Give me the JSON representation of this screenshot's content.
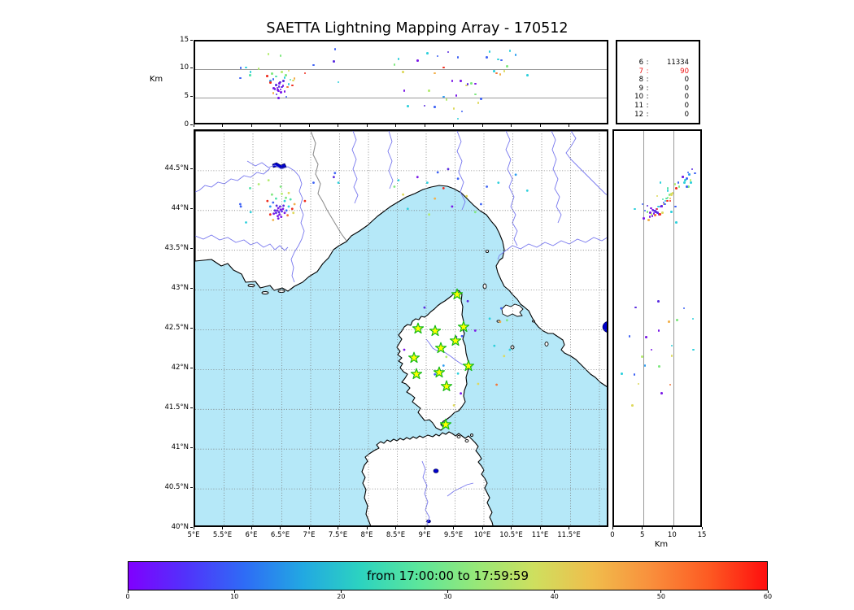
{
  "title": "SAETTA Lightning Mapping Array - 170512",
  "altitude_panel": {
    "axis_label": "Km",
    "tick_labels": [
      "15",
      "10",
      "5",
      "0"
    ],
    "tick_values": [
      15,
      10,
      5,
      0
    ],
    "gridlines": [
      5,
      10
    ],
    "range_km": [
      0,
      15
    ]
  },
  "stats_panel": {
    "rows": [
      {
        "channel": "6",
        "value": "11334",
        "highlight": false
      },
      {
        "channel": "7",
        "value": "90",
        "highlight": true
      },
      {
        "channel": "8",
        "value": "0",
        "highlight": false
      },
      {
        "channel": "9",
        "value": "0",
        "highlight": false
      },
      {
        "channel": "10",
        "value": "0",
        "highlight": false
      },
      {
        "channel": "11",
        "value": "0",
        "highlight": false
      },
      {
        "channel": "12",
        "value": "0",
        "highlight": false
      }
    ]
  },
  "map_panel": {
    "lon_tick_labels": [
      "5°E",
      "5.5°E",
      "6°E",
      "6.5°E",
      "7°E",
      "7.5°E",
      "8°E",
      "8.5°E",
      "9°E",
      "9.5°E",
      "10°E",
      "10.5°E",
      "11°E",
      "11.5°E"
    ],
    "lon_tick_values": [
      5,
      5.5,
      6,
      6.5,
      7,
      7.5,
      8,
      8.5,
      9,
      9.5,
      10,
      10.5,
      11,
      11.5
    ],
    "lat_tick_labels": [
      "44.5°N",
      "44°N",
      "43.5°N",
      "43°N",
      "42.5°N",
      "42°N",
      "41.5°N",
      "41°N",
      "40.5°N",
      "40°N"
    ],
    "lat_tick_values": [
      44.5,
      44,
      43.5,
      43,
      42.5,
      42,
      41.5,
      41,
      40.5,
      40
    ],
    "grid_lon": [
      5.5,
      6,
      6.5,
      7,
      7.5,
      8,
      8.5,
      9,
      9.5,
      10,
      10.5,
      11,
      11.5,
      12
    ],
    "grid_lat": [
      44.5,
      44,
      43.5,
      43,
      42.5,
      42,
      41.5,
      41,
      40.5
    ]
  },
  "right_panel": {
    "axis_label": "Km",
    "tick_labels": [
      "0",
      "5",
      "10",
      "15"
    ],
    "tick_values": [
      0,
      5,
      10,
      15
    ],
    "gridlines": [
      5,
      10
    ],
    "range_km": [
      0,
      15
    ]
  },
  "colorbar": {
    "label": "from 17:00:00 to 17:59:59",
    "tick_labels": [
      "0",
      "10",
      "20",
      "30",
      "40",
      "50",
      "60"
    ],
    "tick_values": [
      0,
      10,
      20,
      30,
      40,
      50,
      60
    ],
    "range": [
      0,
      60
    ],
    "gradient": [
      "#8000fe",
      "#5133fb",
      "#2e6cf6",
      "#22a8e2",
      "#2cd3c0",
      "#5ce69b",
      "#97e878",
      "#cfdf5e",
      "#f0bd4c",
      "#f98f3c",
      "#fd5a22",
      "#fe0e0e"
    ]
  },
  "colors": {
    "sea": "#b5e8f8",
    "land": "#ffffff",
    "coast": "#000000",
    "river": "#7878ee",
    "country_border": "#909090",
    "grid": "#777777",
    "lake": "#0000cc",
    "station_fill": "#ffff00",
    "station_edge": "#16bb16",
    "stat_highlight": "#ee1111",
    "palette": [
      "#7a18e8",
      "#5a2ce0",
      "#3f63f5",
      "#2e9df0",
      "#2ed0dc",
      "#4fe2a7",
      "#7fe87f",
      "#b4ec6e",
      "#ded95c",
      "#f2b04a",
      "#f4773a",
      "#ef2c1d"
    ]
  },
  "chart_data": {
    "type": "scatter",
    "title": "SAETTA Lightning Mapping Array - 170512",
    "description": "Lightning VHF sources colored by time: plan view (lon/lat), altitude vs longitude (top panel), altitude vs latitude (right panel)",
    "map_extent": {
      "lon": [
        5,
        12.18
      ],
      "lat": [
        40,
        45
      ]
    },
    "altitude_km_range": [
      0,
      15
    ],
    "time_colorbar": {
      "label": "from 17:00:00 to 17:59:59",
      "ticks_minutes": [
        0,
        10,
        20,
        30,
        40,
        50,
        60
      ]
    },
    "source_counts": [
      [
        "6",
        "11334"
      ],
      [
        "7",
        "90"
      ],
      [
        "8",
        "0"
      ],
      [
        "9",
        "0"
      ],
      [
        "10",
        "0"
      ],
      [
        "11",
        "0"
      ],
      [
        "12",
        "0"
      ]
    ],
    "stations_lon_lat": [
      [
        9.535,
        42.945
      ],
      [
        8.859,
        42.515
      ],
      [
        9.155,
        42.485
      ],
      [
        9.648,
        42.536
      ],
      [
        9.507,
        42.362
      ],
      [
        9.254,
        42.27
      ],
      [
        8.789,
        42.147
      ],
      [
        9.732,
        42.045
      ],
      [
        8.831,
        41.943
      ],
      [
        9.225,
        41.963
      ],
      [
        9.352,
        41.79
      ],
      [
        9.338,
        41.309
      ]
    ],
    "events_lon_lat_altkm_colorindex": [
      [
        6.42,
        44.0,
        6.8,
        0
      ],
      [
        6.45,
        43.98,
        7.0,
        1
      ],
      [
        6.48,
        44.01,
        6.5,
        0
      ],
      [
        6.4,
        43.97,
        7.3,
        1
      ],
      [
        6.44,
        44.03,
        6.2,
        0
      ],
      [
        6.5,
        43.99,
        6.9,
        1
      ],
      [
        6.46,
        43.95,
        7.6,
        0
      ],
      [
        6.38,
        44.0,
        6.6,
        1
      ],
      [
        6.52,
        44.02,
        7.1,
        0
      ],
      [
        6.43,
        43.93,
        6.4,
        0
      ],
      [
        6.47,
        44.05,
        7.8,
        1
      ],
      [
        6.55,
        43.97,
        6.1,
        0
      ],
      [
        6.41,
        44.06,
        5.6,
        1
      ],
      [
        6.49,
        43.92,
        6.0,
        0
      ],
      [
        6.58,
        44.0,
        5.2,
        2
      ],
      [
        6.36,
        43.96,
        6.7,
        0
      ],
      [
        6.53,
        44.06,
        8.0,
        1
      ],
      [
        6.44,
        43.9,
        5.0,
        0
      ],
      [
        6.35,
        44.1,
        8.3,
        2
      ],
      [
        6.55,
        44.12,
        8.6,
        4
      ],
      [
        6.3,
        44.05,
        8.0,
        3
      ],
      [
        6.62,
        44.05,
        7.4,
        4
      ],
      [
        6.4,
        44.15,
        8.8,
        5
      ],
      [
        6.57,
        44.16,
        9.0,
        6
      ],
      [
        6.33,
        44.2,
        9.3,
        6
      ],
      [
        6.5,
        44.21,
        9.6,
        7
      ],
      [
        6.65,
        44.14,
        8.2,
        5
      ],
      [
        6.3,
        43.95,
        7.7,
        11
      ],
      [
        6.6,
        43.94,
        6.9,
        10
      ],
      [
        6.68,
        44.02,
        7.2,
        11
      ],
      [
        6.72,
        44.08,
        8.4,
        9
      ],
      [
        6.25,
        44.12,
        8.9,
        11
      ],
      [
        6.62,
        44.22,
        9.8,
        8
      ],
      [
        6.35,
        43.88,
        5.8,
        9
      ],
      [
        6.7,
        43.97,
        8.1,
        8
      ],
      [
        5.78,
        44.08,
        8.5,
        2
      ],
      [
        5.95,
        44.28,
        9.0,
        5
      ],
      [
        6.1,
        44.33,
        10.2,
        7
      ],
      [
        6.9,
        44.12,
        9.4,
        11
      ],
      [
        7.05,
        44.35,
        10.8,
        2
      ],
      [
        7.4,
        44.42,
        11.5,
        1
      ],
      [
        6.27,
        44.38,
        12.8,
        7
      ],
      [
        6.48,
        44.3,
        12.5,
        6
      ],
      [
        5.88,
        43.85,
        10.4,
        4
      ],
      [
        5.79,
        44.05,
        10.3,
        2
      ],
      [
        5.96,
        43.98,
        9.6,
        4
      ],
      [
        7.42,
        44.47,
        13.6,
        2
      ],
      [
        7.48,
        44.35,
        7.8,
        4
      ],
      [
        8.45,
        44.3,
        10.9,
        6
      ],
      [
        8.52,
        44.38,
        11.9,
        4
      ],
      [
        8.6,
        44.2,
        9.6,
        8
      ],
      [
        8.85,
        44.42,
        11.6,
        0
      ],
      [
        9.02,
        44.35,
        12.9,
        4
      ],
      [
        9.2,
        44.48,
        12.4,
        2
      ],
      [
        9.38,
        44.52,
        13.1,
        1
      ],
      [
        9.55,
        44.4,
        12.2,
        2
      ],
      [
        9.3,
        44.28,
        10.4,
        11
      ],
      [
        9.15,
        44.15,
        9.4,
        9
      ],
      [
        9.45,
        44.05,
        8.0,
        0
      ],
      [
        9.7,
        44.18,
        7.2,
        8
      ],
      [
        10.05,
        44.3,
        12.2,
        2
      ],
      [
        10.25,
        44.35,
        11.8,
        4
      ],
      [
        10.55,
        44.45,
        12.6,
        3
      ],
      [
        10.75,
        44.25,
        9.0,
        4
      ],
      [
        9.85,
        43.98,
        5.6,
        6
      ],
      [
        9.95,
        44.08,
        4.8,
        2
      ],
      [
        8.68,
        44.02,
        3.5,
        4
      ],
      [
        9.05,
        43.95,
        6.3,
        7
      ],
      [
        9.85,
        42.49,
        7.5,
        0
      ],
      [
        9.62,
        42.42,
        2.6,
        2
      ],
      [
        9.55,
        41.95,
        1.3,
        4
      ],
      [
        9.9,
        41.82,
        4.1,
        8
      ],
      [
        8.62,
        42.25,
        6.3,
        0
      ],
      [
        8.97,
        42.78,
        3.6,
        1
      ],
      [
        9.3,
        42.05,
        5.2,
        3
      ],
      [
        9.48,
        41.55,
        3.1,
        8
      ],
      [
        10.18,
        42.3,
        9.7,
        4
      ],
      [
        10.4,
        42.62,
        10.6,
        6
      ],
      [
        9.72,
        42.86,
        7.4,
        1
      ],
      [
        10.3,
        42.77,
        11.7,
        2
      ],
      [
        10.28,
        42.6,
        9.2,
        9
      ],
      [
        10.1,
        42.64,
        13.2,
        4
      ],
      [
        9.52,
        42.41,
        5.4,
        0
      ],
      [
        10.45,
        42.25,
        13.3,
        4
      ],
      [
        10.35,
        42.17,
        9.7,
        8
      ],
      [
        9.35,
        42.16,
        4.7,
        7
      ],
      [
        9.78,
        42.04,
        7.6,
        6
      ],
      [
        9.15,
        41.94,
        3.4,
        2
      ],
      [
        9.6,
        41.7,
        8.0,
        0
      ],
      [
        10.22,
        41.81,
        9.4,
        10
      ]
    ]
  }
}
